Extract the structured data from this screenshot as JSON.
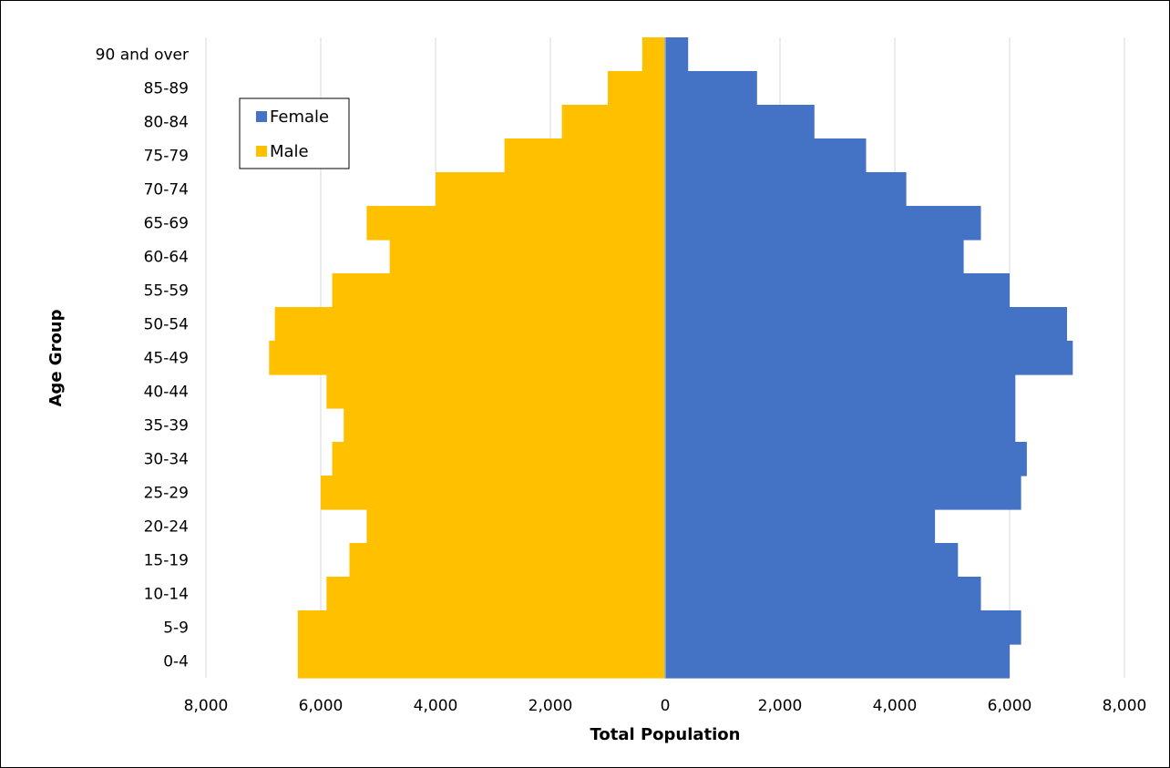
{
  "chart_data": {
    "type": "bar",
    "orientation": "horizontal",
    "subtype": "population-pyramid",
    "title": "",
    "xlabel": "Total Population",
    "ylabel": "Age Group",
    "categories": [
      "0-4",
      "5-9",
      "10-14",
      "15-19",
      "20-24",
      "25-29",
      "30-34",
      "35-39",
      "40-44",
      "45-49",
      "50-54",
      "55-59",
      "60-64",
      "65-69",
      "70-74",
      "75-79",
      "80-84",
      "85-89",
      "90 and over"
    ],
    "series": [
      {
        "name": "Female",
        "color": "#4472C4",
        "side": "right",
        "values": [
          6000,
          6200,
          5500,
          5100,
          4700,
          6200,
          6300,
          6100,
          6100,
          7100,
          7000,
          6000,
          5200,
          5500,
          4200,
          3500,
          2600,
          1600,
          400
        ]
      },
      {
        "name": "Male",
        "color": "#FFC000",
        "side": "left",
        "values": [
          6400,
          6400,
          5900,
          5500,
          5200,
          6000,
          5800,
          5600,
          5900,
          6900,
          6800,
          5800,
          4800,
          5200,
          4000,
          2800,
          1800,
          1000,
          400
        ]
      }
    ],
    "xlim": [
      -8000,
      8000
    ],
    "xticks": [
      -8000,
      -6000,
      -4000,
      -2000,
      0,
      2000,
      4000,
      6000,
      8000
    ],
    "xtick_labels": [
      "8,000",
      "6,000",
      "4,000",
      "2,000",
      "0",
      "2,000",
      "4,000",
      "6,000",
      "8,000"
    ],
    "grid": "vertical",
    "legend": {
      "position": "top-left",
      "entries": [
        "Female",
        "Male"
      ]
    }
  }
}
